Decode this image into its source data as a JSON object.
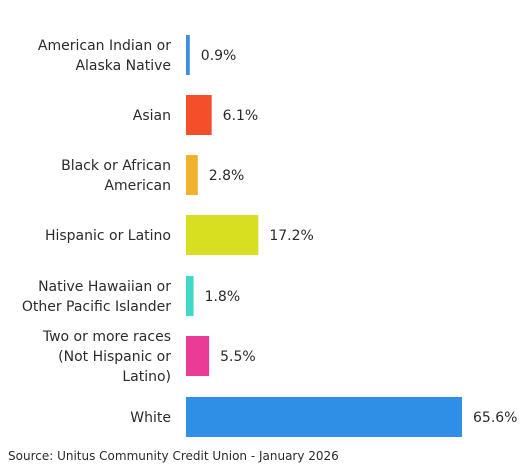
{
  "chart_data": {
    "type": "bar",
    "orientation": "horizontal",
    "categories": [
      "American Indian or Alaska Native",
      "Asian",
      "Black or African American",
      "Hispanic or Latino",
      "Native Hawaiian or Other Pacific Islander",
      "Two or more races (Not Hispanic or Latino)",
      "White"
    ],
    "category_label_lines": [
      [
        "American Indian or",
        "Alaska Native"
      ],
      [
        "Asian"
      ],
      [
        "Black or African",
        "American"
      ],
      [
        "Hispanic or Latino"
      ],
      [
        "Native Hawaiian or",
        "Other Pacific Islander"
      ],
      [
        "Two or more races",
        "(Not Hispanic or",
        "Latino)"
      ],
      [
        "White"
      ]
    ],
    "values": [
      0.9,
      6.1,
      2.8,
      17.2,
      1.8,
      5.5,
      65.6
    ],
    "value_labels": [
      "0.9%",
      "6.1%",
      "2.8%",
      "17.2%",
      "1.8%",
      "5.5%",
      "65.6%"
    ],
    "colors": [
      "#3a8fe0",
      "#f24f2a",
      "#f2b12d",
      "#d8df20",
      "#40d9c8",
      "#ea3b96",
      "#2f8fe6"
    ],
    "unit": "%",
    "xlim": [
      0,
      65.6
    ],
    "grid": false,
    "legend": "none",
    "title": "",
    "xlabel": "",
    "ylabel": ""
  },
  "source_note": "Source: Unitus Community Credit Union - January 2026"
}
